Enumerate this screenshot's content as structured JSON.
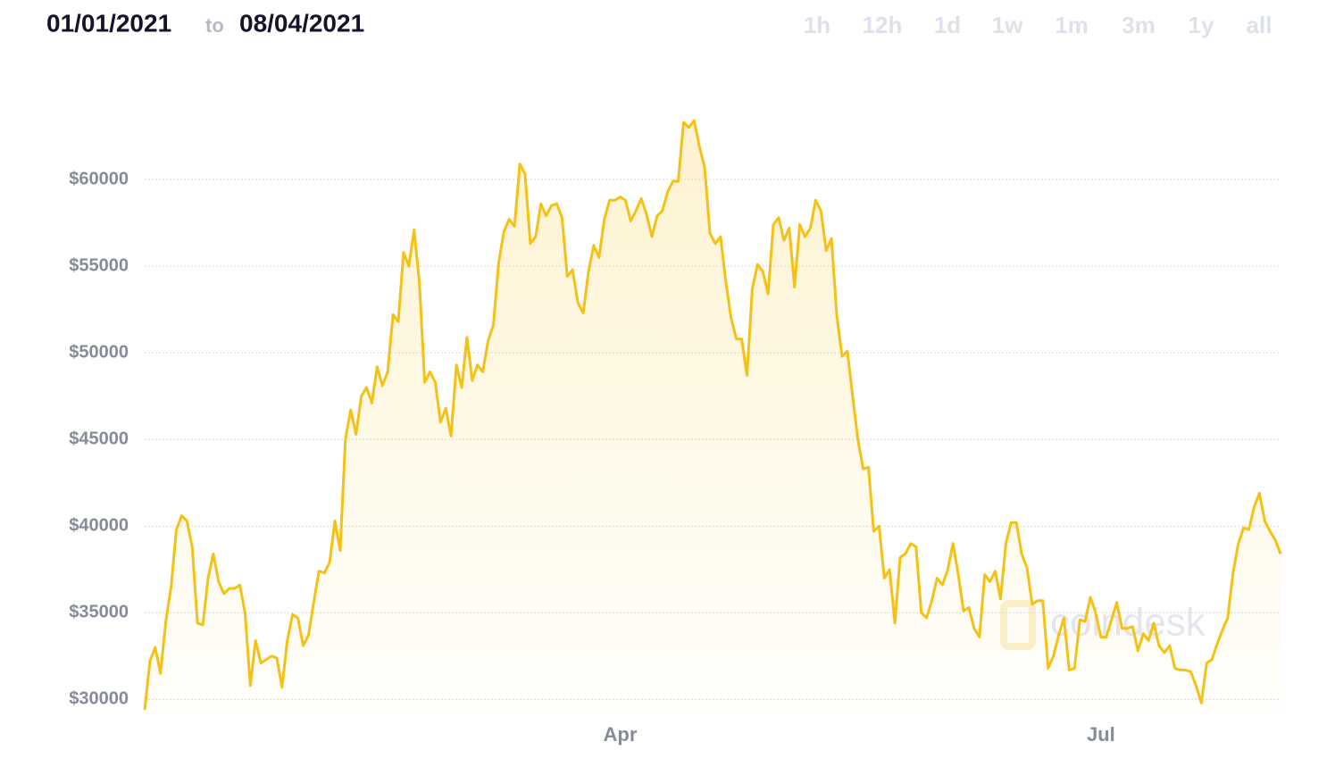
{
  "header": {
    "from": "01/01/2021",
    "to_word": "to",
    "to": "08/04/2021"
  },
  "range_buttons": [
    "1h",
    "12h",
    "1d",
    "1w",
    "1m",
    "3m",
    "1y",
    "all"
  ],
  "watermark": "coindesk",
  "chart_data": {
    "type": "line",
    "color": "#f5c115",
    "values": [
      29400,
      32200,
      33000,
      31500,
      34500,
      36500,
      39800,
      40600,
      40300,
      38800,
      34400,
      34300,
      37000,
      38400,
      36800,
      36100,
      36400,
      36400,
      36600,
      35000,
      30800,
      33400,
      32100,
      32300,
      32500,
      32400,
      30700,
      33400,
      34900,
      34700,
      33100,
      33700,
      35600,
      37400,
      37300,
      37900,
      40300,
      38600,
      45000,
      46700,
      45300,
      47500,
      48000,
      47100,
      49200,
      48100,
      48900,
      52200,
      51800,
      55800,
      55000,
      57100,
      54100,
      48300,
      48900,
      48300,
      46000,
      46800,
      45200,
      49300,
      48000,
      50900,
      48400,
      49300,
      48900,
      50700,
      51600,
      55200,
      57000,
      57700,
      57300,
      60900,
      60300,
      56300,
      56700,
      58600,
      57900,
      58500,
      58600,
      57800,
      54400,
      54800,
      52900,
      52300,
      54700,
      56200,
      55500,
      57700,
      58800,
      58800,
      59000,
      58800,
      57600,
      58200,
      58900,
      58000,
      56700,
      57900,
      58200,
      59300,
      59900,
      59900,
      63300,
      63000,
      63400,
      61900,
      60700,
      56900,
      56300,
      56700,
      54100,
      52000,
      50800,
      50800,
      48700,
      53700,
      55100,
      54700,
      53400,
      57400,
      57800,
      56500,
      57200,
      53800,
      57400,
      56700,
      57200,
      58800,
      58200,
      55900,
      56600,
      52200,
      49800,
      50100,
      47500,
      45000,
      43300,
      43400,
      39700,
      40000,
      37000,
      37500,
      34400,
      38200,
      38400,
      39000,
      38800,
      35000,
      34700,
      35700,
      37000,
      36600,
      37500,
      39000,
      37200,
      35100,
      35300,
      34100,
      33600,
      37200,
      36800,
      37400,
      35800,
      39000,
      40200,
      40200,
      38400,
      37600,
      35500,
      35700,
      35700,
      31800,
      32500,
      33700,
      34700,
      31700,
      31800,
      34600,
      34500,
      35900,
      35000,
      33600,
      33600,
      34600,
      35600,
      34100,
      34100,
      34200,
      32800,
      33800,
      33400,
      34400,
      33100,
      32700,
      33100,
      31800,
      31700,
      31700,
      31600,
      30800,
      29800,
      32100,
      32300,
      33200,
      34000,
      34700,
      37300,
      39000,
      39900,
      39800,
      41100,
      41900,
      40300,
      39700,
      39200,
      38400
    ],
    "xlim": [
      0,
      215
    ],
    "xticks": [
      {
        "value": 90,
        "label": "Apr"
      },
      {
        "value": 181,
        "label": "Jul"
      }
    ],
    "ylim": [
      29400,
      65000
    ],
    "yticks": [
      {
        "value": 30000,
        "label": "$30000"
      },
      {
        "value": 35000,
        "label": "$35000"
      },
      {
        "value": 40000,
        "label": "$40000"
      },
      {
        "value": 45000,
        "label": "$45000"
      },
      {
        "value": 50000,
        "label": "$50000"
      },
      {
        "value": 55000,
        "label": "$55000"
      },
      {
        "value": 60000,
        "label": "$60000"
      }
    ],
    "grid": true
  }
}
